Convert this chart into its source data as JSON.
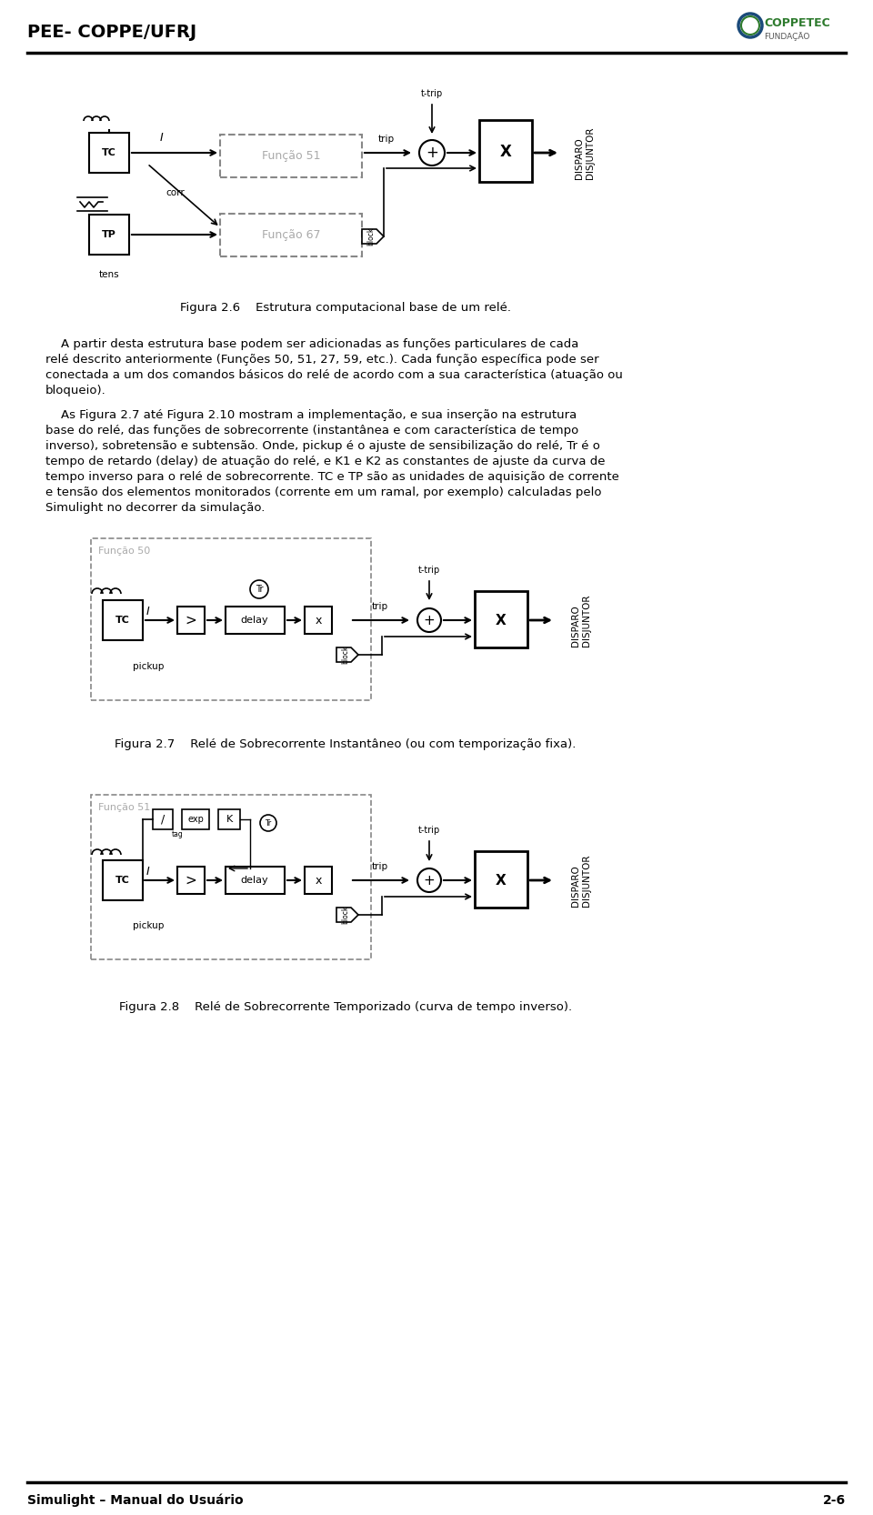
{
  "header_left": "PEE- COPPE/UFRJ",
  "footer_left": "Simulight – Manual do Usuário",
  "footer_right": "2-6",
  "background_color": "#ffffff",
  "text_color": "#000000",
  "fig26_caption": "Figura 2.6    Estrutura computacional base de um relé.",
  "fig27_caption": "Figura 2.7    Relé de Sobrecorrente Instantâneo (ou com temporização fixa).",
  "fig28_caption": "Figura 2.8    Relé de Sobrecorrente Temporizado (curva de tempo inverso).",
  "dashed_color": "#888888",
  "func_text_color": "#aaaaaa",
  "header_line_color": "#000000",
  "footer_line_color": "#000000",
  "para1_lines": [
    "    A partir desta estrutura base podem ser adicionadas as funções particulares de cada",
    "relé descrito anteriormente (Funções 50, 51, 27, 59, etc.). Cada função específica pode ser",
    "conectada a um dos comandos básicos do relé de acordo com a sua característica (atuação ou",
    "bloqueio)."
  ],
  "para2_lines": [
    "    As Figura 2.7 até Figura 2.10 mostram a implementação, e sua inserção na estrutura",
    "base do relé, das funções de sobrecorrente (instantânea e com característica de tempo",
    "inverso), sobretensão e subtensão. Onde, pickup é o ajuste de sensibilização do relé, Tr é o",
    "tempo de retardo (delay) de atuação do relé, e K1 e K2 as constantes de ajuste da curva de",
    "tempo inverso para o relé de sobrecorrente. TC e TP são as unidades de aquisição de corrente",
    "e tensão dos elementos monitorados (corrente em um ramal, por exemplo) calculadas pelo",
    "Simulight no decorrer da simulação."
  ]
}
